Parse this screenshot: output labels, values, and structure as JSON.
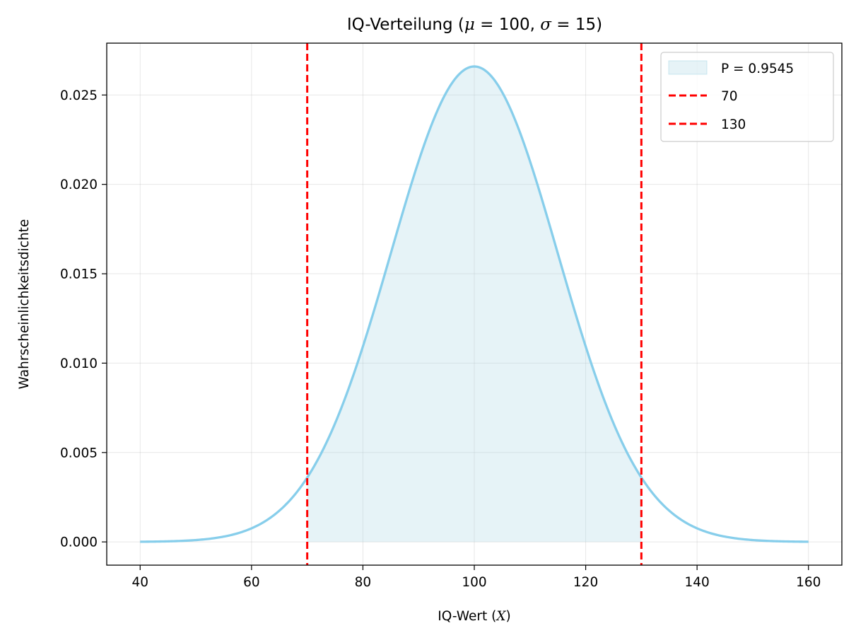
{
  "chart_data": {
    "type": "area",
    "title_prefix": "IQ-Verteilung (",
    "title_mu": "μ",
    "title_eq1": " = 100, ",
    "title_sigma": "σ",
    "title_eq2": " = 15)",
    "xlabel_prefix": "IQ-Wert (",
    "xlabel_var": "X",
    "xlabel_suffix": ")",
    "ylabel": "Wahrscheinlichkeitsdichte",
    "mu": 100,
    "sigma": 15,
    "x_range": [
      40,
      160
    ],
    "xlim": [
      34,
      166
    ],
    "ylim": [
      -0.0013,
      0.0279
    ],
    "xticks": [
      40,
      60,
      80,
      100,
      120,
      140,
      160
    ],
    "xtick_labels": [
      "40",
      "60",
      "80",
      "100",
      "120",
      "140",
      "160"
    ],
    "yticks": [
      0.0,
      0.005,
      0.01,
      0.015,
      0.02,
      0.025
    ],
    "ytick_labels": [
      "0.000",
      "0.005",
      "0.010",
      "0.015",
      "0.020",
      "0.025"
    ],
    "grid": true,
    "legend_position": "top-right",
    "fill_region": {
      "x_from": 70,
      "x_to": 130,
      "label": "P = 0.9545",
      "color": "#add8e6"
    },
    "vlines": [
      {
        "x": 70,
        "label": "70",
        "color": "#ff0000",
        "style": "dashed"
      },
      {
        "x": 130,
        "label": "130",
        "color": "#ff0000",
        "style": "dashed"
      }
    ],
    "curve": {
      "color": "#87ceeb"
    }
  }
}
